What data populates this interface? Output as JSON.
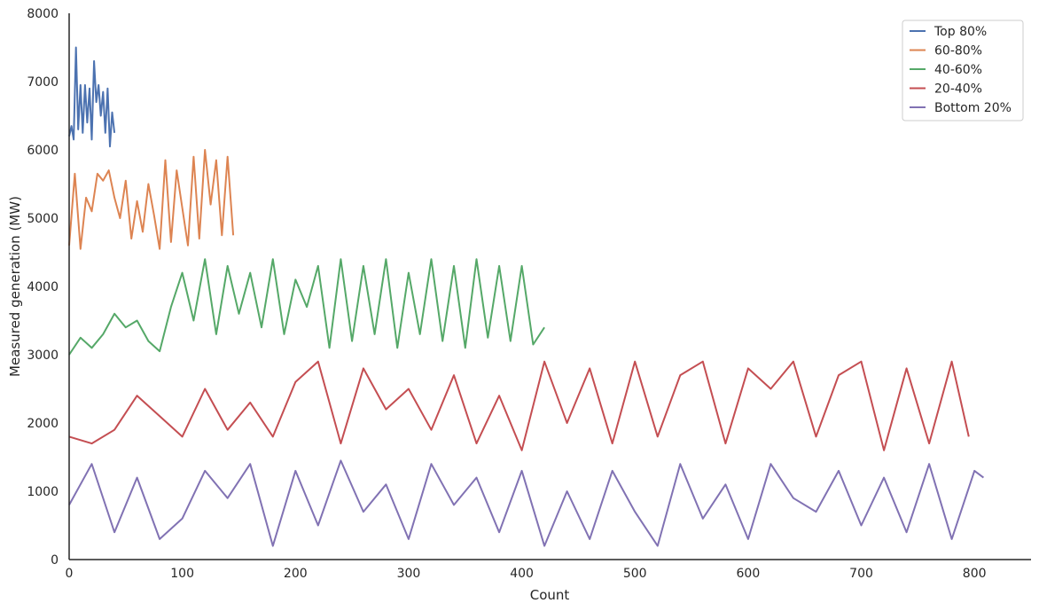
{
  "chart_data": {
    "type": "line",
    "xlabel": "Count",
    "ylabel": "Measured generation (MW)",
    "xlim": [
      0,
      850
    ],
    "ylim": [
      0,
      8000
    ],
    "xticks": [
      0,
      100,
      200,
      300,
      400,
      500,
      600,
      700,
      800
    ],
    "yticks": [
      0,
      1000,
      2000,
      3000,
      4000,
      5000,
      6000,
      7000,
      8000
    ],
    "grid": false,
    "legend_position": "top-right",
    "series": [
      {
        "name": "Top 80%",
        "color": "#4c72b0",
        "x": [
          0,
          2,
          4,
          6,
          8,
          10,
          12,
          14,
          16,
          18,
          20,
          22,
          24,
          26,
          28,
          30,
          32,
          34,
          36,
          38,
          40
        ],
        "y": [
          6200,
          6350,
          6150,
          7500,
          6300,
          6950,
          6250,
          6950,
          6400,
          6900,
          6150,
          7300,
          6700,
          6950,
          6500,
          6850,
          6250,
          6900,
          6050,
          6550,
          6250
        ]
      },
      {
        "name": "60-80%",
        "color": "#dd8452",
        "x": [
          0,
          5,
          10,
          15,
          20,
          25,
          30,
          35,
          40,
          45,
          50,
          55,
          60,
          65,
          70,
          75,
          80,
          85,
          90,
          95,
          100,
          105,
          110,
          115,
          120,
          125,
          130,
          135,
          140,
          145
        ],
        "y": [
          4600,
          5650,
          4550,
          5300,
          5100,
          5650,
          5550,
          5700,
          5300,
          5000,
          5550,
          4700,
          5250,
          4800,
          5500,
          5050,
          4550,
          5850,
          4650,
          5700,
          5150,
          4600,
          5900,
          4700,
          6000,
          5200,
          5850,
          4750,
          5900,
          4750
        ]
      },
      {
        "name": "40-60%",
        "color": "#55a868",
        "x": [
          0,
          10,
          20,
          30,
          40,
          50,
          60,
          70,
          80,
          90,
          100,
          110,
          120,
          130,
          140,
          150,
          160,
          170,
          180,
          190,
          200,
          210,
          220,
          230,
          240,
          250,
          260,
          270,
          280,
          290,
          300,
          310,
          320,
          330,
          340,
          350,
          360,
          370,
          380,
          390,
          400,
          410,
          420
        ],
        "y": [
          3000,
          3250,
          3100,
          3300,
          3600,
          3400,
          3500,
          3200,
          3050,
          3700,
          4200,
          3500,
          4400,
          3300,
          4300,
          3600,
          4200,
          3400,
          4400,
          3300,
          4100,
          3700,
          4300,
          3100,
          4400,
          3200,
          4300,
          3300,
          4400,
          3100,
          4200,
          3300,
          4400,
          3200,
          4300,
          3100,
          4400,
          3250,
          4300,
          3200,
          4300,
          3150,
          3400
        ]
      },
      {
        "name": "20-40%",
        "color": "#c44e52",
        "x": [
          0,
          20,
          40,
          60,
          80,
          100,
          120,
          140,
          160,
          180,
          200,
          220,
          240,
          260,
          280,
          300,
          320,
          340,
          360,
          380,
          400,
          420,
          440,
          460,
          480,
          500,
          520,
          540,
          560,
          580,
          600,
          620,
          640,
          660,
          680,
          700,
          720,
          740,
          760,
          780,
          795
        ],
        "y": [
          1800,
          1700,
          1900,
          2400,
          2100,
          1800,
          2500,
          1900,
          2300,
          1800,
          2600,
          2900,
          1700,
          2800,
          2200,
          2500,
          1900,
          2700,
          1700,
          2400,
          1600,
          2900,
          2000,
          2800,
          1700,
          2900,
          1800,
          2700,
          2900,
          1700,
          2800,
          2500,
          2900,
          1800,
          2700,
          2900,
          1600,
          2800,
          1700,
          2900,
          1800
        ]
      },
      {
        "name": "Bottom 20%",
        "color": "#8172b3",
        "x": [
          0,
          20,
          40,
          60,
          80,
          100,
          120,
          140,
          160,
          180,
          200,
          220,
          240,
          260,
          280,
          300,
          320,
          340,
          360,
          380,
          400,
          420,
          440,
          460,
          480,
          500,
          520,
          540,
          560,
          580,
          600,
          620,
          640,
          660,
          680,
          700,
          720,
          740,
          760,
          780,
          800,
          808
        ],
        "y": [
          800,
          1400,
          400,
          1200,
          300,
          600,
          1300,
          900,
          1400,
          200,
          1300,
          500,
          1450,
          700,
          1100,
          300,
          1400,
          800,
          1200,
          400,
          1300,
          200,
          1000,
          300,
          1300,
          700,
          200,
          1400,
          600,
          1100,
          300,
          1400,
          900,
          700,
          1300,
          500,
          1200,
          400,
          1400,
          300,
          1300,
          1200
        ]
      }
    ]
  }
}
